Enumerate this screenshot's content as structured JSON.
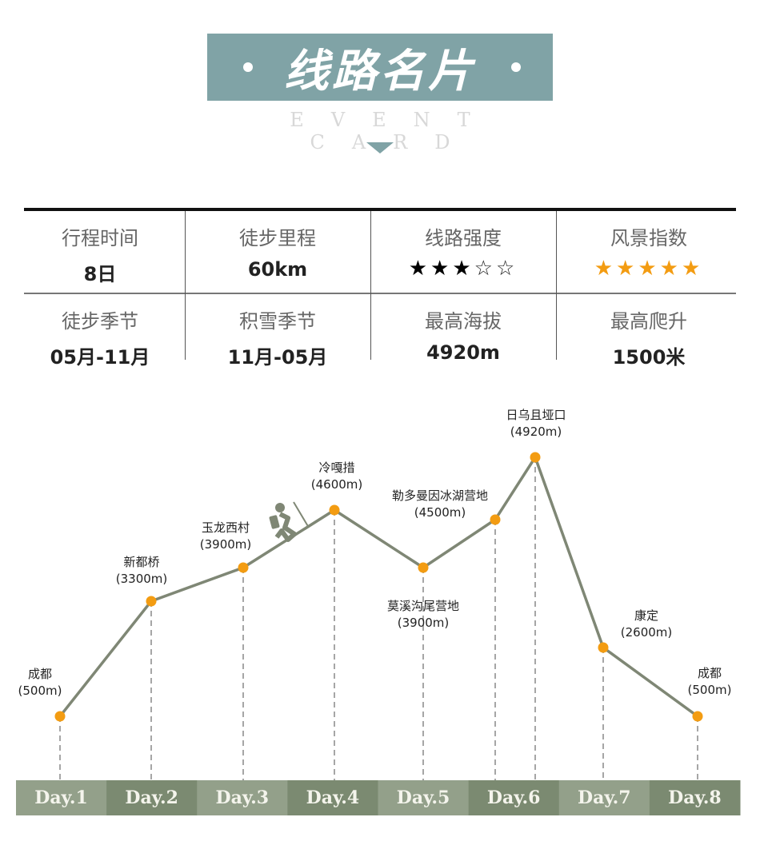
{
  "header": {
    "title": "线路名片",
    "subtitle": "EVENT CARD",
    "accent": "#80a3a6"
  },
  "info": [
    {
      "label": "行程时间",
      "value": "8日"
    },
    {
      "label": "徒步里程",
      "value": "60km"
    },
    {
      "label": "线路强度",
      "rating": 3,
      "max": 5,
      "star_color": "#000000"
    },
    {
      "label": "风景指数",
      "rating": 5,
      "max": 5,
      "star_color": "#f39c12"
    },
    {
      "label": "徒步季节",
      "value": "05月-11月"
    },
    {
      "label": "积雪季节",
      "value": "11月-05月"
    },
    {
      "label": "最高海拔",
      "value": "4920m"
    },
    {
      "label": "最高爬升",
      "value": "1500米"
    }
  ],
  "chart_data": {
    "type": "line",
    "points": [
      {
        "name": "成都",
        "elev_label": "(500m)",
        "elevation": 500,
        "day": 1
      },
      {
        "name": "新都桥",
        "elev_label": "(3300m)",
        "elevation": 3300,
        "day": 2
      },
      {
        "name": "玉龙西村",
        "elev_label": "(3900m)",
        "elevation": 3900,
        "day": 3
      },
      {
        "name": "冷嘎措",
        "elev_label": "(4600m)",
        "elevation": 4600,
        "day": 4
      },
      {
        "name": "莫溪沟尾营地",
        "elev_label": "(3900m)",
        "elevation": 3900,
        "day": 5
      },
      {
        "name": "勒多曼因冰湖营地",
        "elev_label": "(4500m)",
        "elevation": 4500,
        "day": 6
      },
      {
        "name": "日乌且垭口",
        "elev_label": "(4920m)",
        "elevation": 4920,
        "day": 6
      },
      {
        "name": "康定",
        "elev_label": "(2600m)",
        "elevation": 2600,
        "day": 7
      },
      {
        "name": "成都",
        "elev_label": "(500m)",
        "elevation": 500,
        "day": 8
      }
    ],
    "days": [
      "Day.1",
      "Day.2",
      "Day.3",
      "Day.4",
      "Day.5",
      "Day.6",
      "Day.7",
      "Day.8"
    ],
    "line_color": "#7f8775",
    "point_color": "#f39c12",
    "day_colors": [
      "#93a08a",
      "#7b8a71"
    ]
  }
}
